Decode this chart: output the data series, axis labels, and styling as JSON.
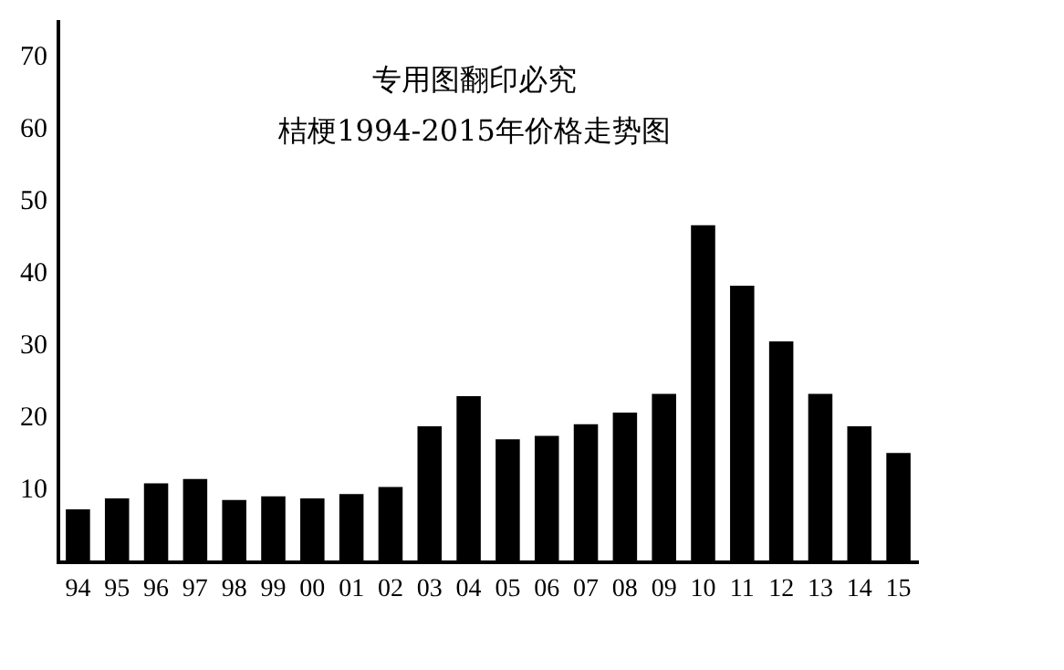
{
  "chart_data": {
    "type": "bar",
    "title": "专用图翻印必究",
    "subtitle": "桔梗1994-2015年价格走势图",
    "categories": [
      "94",
      "95",
      "96",
      "97",
      "98",
      "99",
      "00",
      "01",
      "02",
      "03",
      "04",
      "05",
      "06",
      "07",
      "08",
      "09",
      "10",
      "11",
      "12",
      "13",
      "14",
      "15"
    ],
    "values": [
      7.4,
      8.9,
      11,
      11.6,
      8.7,
      9.2,
      8.9,
      9.5,
      10.5,
      18.9,
      23.1,
      17.1,
      17.6,
      19.2,
      20.8,
      23.4,
      46.8,
      38.4,
      30.7,
      23.4,
      18.9,
      15.2
    ],
    "color": "#000000",
    "ylim": [
      0,
      75
    ],
    "yticks": [
      10,
      20,
      30,
      40,
      50,
      60,
      70
    ],
    "grid": false,
    "legend": false
  }
}
